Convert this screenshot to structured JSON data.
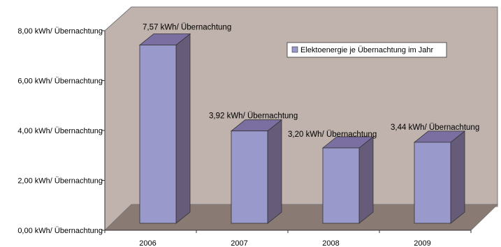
{
  "chart_data": {
    "type": "bar",
    "categories": [
      "2006",
      "2007",
      "2008",
      "2009"
    ],
    "series": [
      {
        "name": "Elektoenergie je Übernachtung im Jahr",
        "values": [
          7.57,
          3.92,
          3.2,
          3.44
        ],
        "data_labels": [
          "7,57 kWh/ Übernachtung",
          "3,92 kWh/ Übernachtung",
          "3,20 kWh/ Übernachtung",
          "3,44 kWh/ Übernachtung"
        ]
      }
    ],
    "y_ticks": [
      0,
      2,
      4,
      6,
      8
    ],
    "y_tick_labels": [
      "0,00 kWh/ Übernachtung",
      "2,00 kWh/ Übernachtung",
      "4,00 kWh/ Übernachtung",
      "6,00 kWh/ Übernachtung",
      "8,00 kWh/ Übernachtung"
    ],
    "ylim": [
      0,
      8
    ],
    "title": "",
    "xlabel": "",
    "ylabel": "",
    "legend": "top-right",
    "grid": false,
    "style": "3d-bar",
    "colors": {
      "bar_front": "#9999cc",
      "bar_side": "#665b78",
      "bar_top": "#7a6fa0",
      "wall": "#c0b2ac",
      "floor": "#8a7a74"
    }
  }
}
